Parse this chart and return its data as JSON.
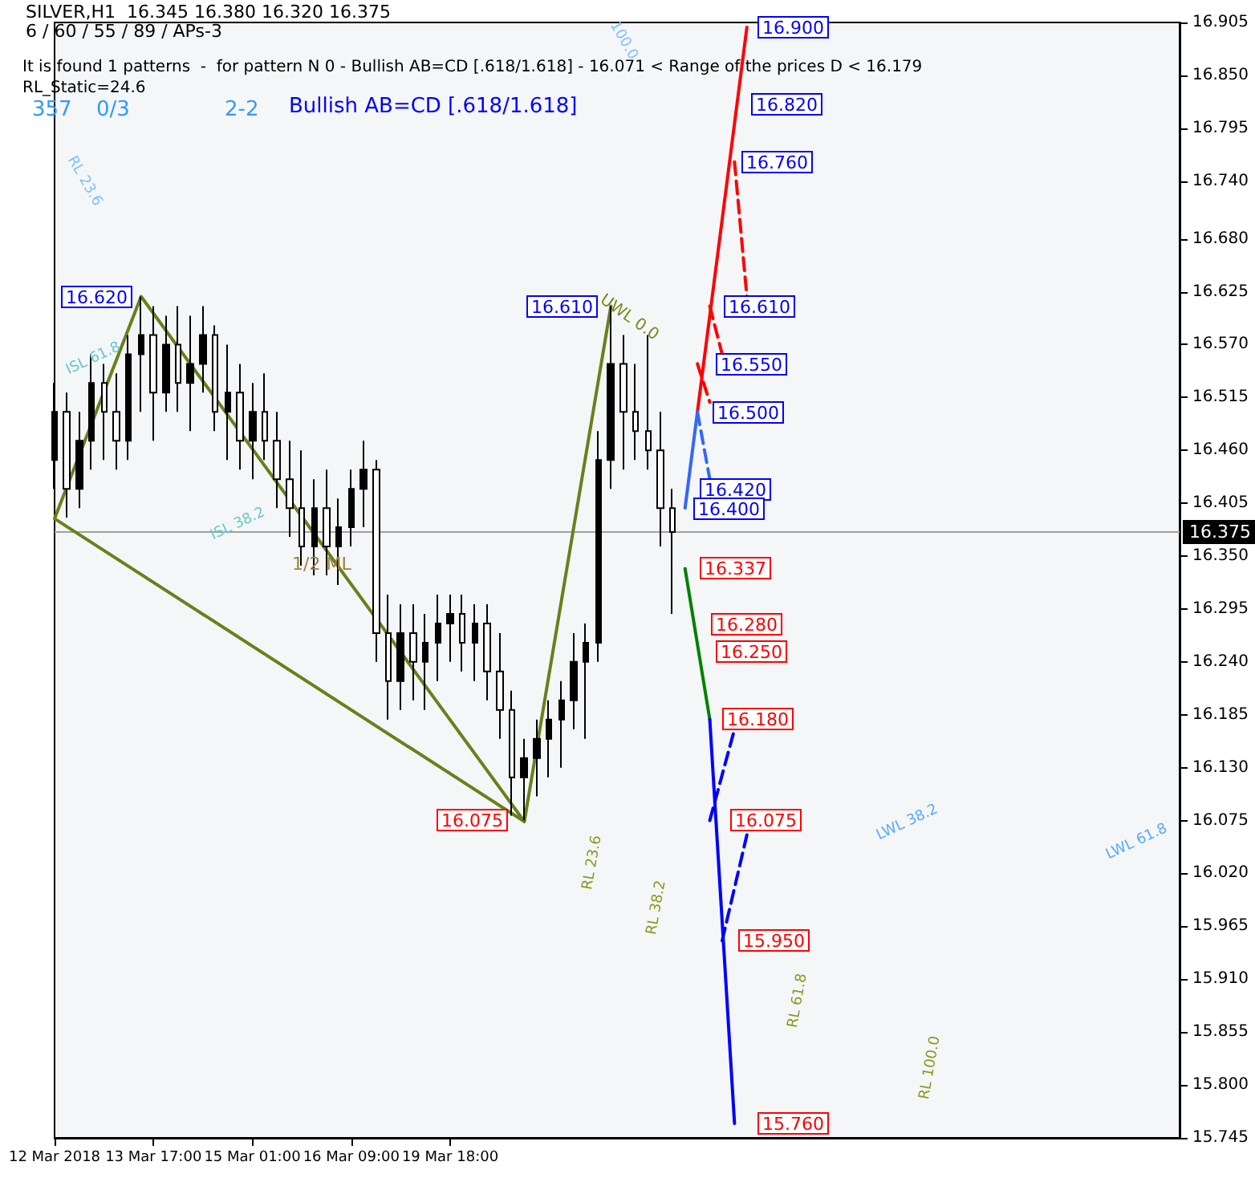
{
  "chart_data": {
    "type": "candlestick",
    "title": "SILVER,H1  16.345 16.380 16.320 16.375",
    "subtitle": "6 / 60 / 55 / 89 / APs-3",
    "annotations": [
      "It is found 1 patterns  -  for pattern N 0 - Bullish AB=CD [.618/1.618] - 16.071 < Range of the prices D < 16.179",
      "RL_Static=24.6",
      "357",
      "0/3",
      "2-2",
      "Bullish AB=CD [.618/1.618]",
      "RL 23.6",
      "100.0",
      "ISL 61.8",
      "ISL 38.2",
      "1/2 ML",
      "UWL 0.0",
      "RL 23.6",
      "RL 38.2",
      "RL 61.8",
      "RL 100.0",
      "LWL 38.2",
      "LWL 61.8",
      "16.620",
      "16.610",
      "16.075",
      "16.900",
      "16.820",
      "16.760",
      "16.610",
      "16.550",
      "16.500",
      "16.420",
      "16.400",
      "16.337",
      "16.280",
      "16.250",
      "16.180",
      "16.075",
      "15.950",
      "15.760"
    ],
    "color": "#000000",
    "categories": [
      "12 Mar 2018",
      null,
      null,
      null,
      null,
      null,
      null,
      null,
      "13 Mar 17:00",
      null,
      null,
      null,
      null,
      null,
      null,
      null,
      "15 Mar 01:00",
      null,
      null,
      null,
      null,
      null,
      null,
      null,
      "16 Mar 09:00",
      null,
      null,
      null,
      null,
      null,
      null,
      null,
      "19 Mar 18:00",
      null,
      null,
      null,
      null,
      null,
      null,
      null,
      null,
      null,
      null,
      null,
      null,
      null,
      null,
      null,
      null,
      null,
      null,
      null,
      null,
      null,
      null,
      null,
      null,
      null,
      null,
      null,
      null,
      null,
      null,
      null,
      null,
      null,
      null,
      null,
      null,
      null,
      null,
      null,
      null,
      null,
      null,
      null,
      null,
      null,
      null,
      null,
      null,
      null,
      null,
      null,
      null,
      null,
      null,
      null,
      null,
      null,
      null,
      null
    ],
    "ohlc": [
      [
        16.45,
        16.53,
        16.42,
        16.5
      ],
      [
        16.5,
        16.52,
        16.39,
        16.42
      ],
      [
        16.42,
        16.5,
        16.4,
        16.47
      ],
      [
        16.47,
        16.56,
        16.44,
        16.53
      ],
      [
        16.53,
        16.55,
        16.45,
        16.5
      ],
      [
        16.5,
        16.54,
        16.44,
        16.47
      ],
      [
        16.47,
        16.58,
        16.45,
        16.56
      ],
      [
        16.56,
        16.62,
        16.5,
        16.58
      ],
      [
        16.58,
        16.61,
        16.47,
        16.52
      ],
      [
        16.52,
        16.6,
        16.5,
        16.57
      ],
      [
        16.57,
        16.61,
        16.5,
        16.53
      ],
      [
        16.53,
        16.6,
        16.48,
        16.55
      ],
      [
        16.55,
        16.61,
        16.52,
        16.58
      ],
      [
        16.58,
        16.59,
        16.48,
        16.5
      ],
      [
        16.5,
        16.57,
        16.45,
        16.52
      ],
      [
        16.52,
        16.55,
        16.44,
        16.47
      ],
      [
        16.47,
        16.53,
        16.43,
        16.5
      ],
      [
        16.5,
        16.54,
        16.45,
        16.47
      ],
      [
        16.47,
        16.5,
        16.4,
        16.43
      ],
      [
        16.43,
        16.47,
        16.37,
        16.4
      ],
      [
        16.4,
        16.46,
        16.34,
        16.36
      ],
      [
        16.36,
        16.43,
        16.33,
        16.4
      ],
      [
        16.4,
        16.44,
        16.33,
        16.36
      ],
      [
        16.36,
        16.41,
        16.32,
        16.38
      ],
      [
        16.38,
        16.44,
        16.36,
        16.42
      ],
      [
        16.42,
        16.47,
        16.38,
        16.44
      ],
      [
        16.44,
        16.45,
        16.24,
        16.27
      ],
      [
        16.27,
        16.31,
        16.18,
        16.22
      ],
      [
        16.22,
        16.3,
        16.19,
        16.27
      ],
      [
        16.27,
        16.3,
        16.2,
        16.24
      ],
      [
        16.24,
        16.29,
        16.19,
        16.26
      ],
      [
        16.26,
        16.31,
        16.22,
        16.28
      ],
      [
        16.28,
        16.31,
        16.24,
        16.29
      ],
      [
        16.29,
        16.31,
        16.23,
        16.26
      ],
      [
        16.26,
        16.3,
        16.22,
        16.28
      ],
      [
        16.28,
        16.3,
        16.2,
        16.23
      ],
      [
        16.23,
        16.27,
        16.16,
        16.19
      ],
      [
        16.19,
        16.21,
        16.08,
        16.12
      ],
      [
        16.12,
        16.16,
        16.075,
        16.14
      ],
      [
        16.14,
        16.18,
        16.1,
        16.16
      ],
      [
        16.16,
        16.2,
        16.12,
        16.18
      ],
      [
        16.18,
        16.22,
        16.13,
        16.2
      ],
      [
        16.2,
        16.27,
        16.17,
        16.24
      ],
      [
        16.24,
        16.28,
        16.16,
        16.26
      ],
      [
        16.26,
        16.48,
        16.24,
        16.45
      ],
      [
        16.45,
        16.61,
        16.42,
        16.55
      ],
      [
        16.55,
        16.58,
        16.44,
        16.5
      ],
      [
        16.5,
        16.55,
        16.45,
        16.48
      ],
      [
        16.48,
        16.58,
        16.44,
        16.46
      ],
      [
        16.46,
        16.5,
        16.36,
        16.4
      ],
      [
        16.4,
        16.42,
        16.29,
        16.375
      ],
      null,
      null,
      null,
      null,
      null,
      null,
      null,
      null,
      null,
      null,
      null,
      null,
      null,
      null,
      null,
      null,
      null,
      null,
      null,
      null,
      null,
      null,
      null,
      null,
      null,
      null,
      null,
      null,
      null,
      null,
      null,
      null,
      null,
      null,
      null,
      null,
      null,
      null,
      null,
      null,
      null
    ],
    "series": [
      {
        "type": "line",
        "color": "#6b7f1a",
        "values": [
          16.389,
          null,
          null,
          null,
          null,
          null,
          null,
          16.62,
          null,
          null,
          null,
          null,
          null,
          null,
          null,
          null,
          null,
          null,
          null,
          null,
          null,
          null,
          null,
          null,
          null,
          null,
          null,
          null,
          null,
          null,
          null,
          null,
          null,
          null,
          null,
          null,
          null,
          null,
          16.074,
          null,
          null,
          null,
          null,
          null,
          null,
          16.61,
          null,
          null,
          null,
          null,
          null,
          null,
          null,
          null,
          null,
          null,
          null,
          null,
          null,
          null,
          null,
          null,
          null,
          null,
          null,
          null,
          null,
          null,
          null,
          null,
          null,
          null,
          null,
          null,
          null,
          null,
          null,
          null,
          null,
          null,
          null,
          null,
          null,
          null,
          null,
          null,
          null,
          null,
          null,
          null,
          null,
          null
        ]
      },
      {
        "type": "line",
        "color": "#6b7f1a",
        "values": [
          16.389,
          null,
          null,
          null,
          null,
          null,
          null,
          null,
          null,
          null,
          null,
          null,
          null,
          null,
          null,
          null,
          null,
          null,
          null,
          null,
          null,
          null,
          null,
          null,
          null,
          null,
          null,
          null,
          null,
          null,
          null,
          null,
          null,
          null,
          null,
          null,
          null,
          null,
          16.074,
          null,
          null,
          null,
          null,
          null,
          null,
          null,
          null,
          null,
          null,
          null,
          null,
          null,
          null,
          null,
          null,
          null,
          null,
          null,
          null,
          null,
          null,
          null,
          null,
          null,
          null,
          null,
          null,
          null,
          null,
          null,
          null,
          null,
          null,
          null,
          null,
          null,
          null,
          null,
          null,
          null,
          null,
          null,
          null,
          null,
          null,
          null,
          null,
          null,
          null,
          null,
          null,
          null
        ]
      },
      {
        "type": "line",
        "color": "#3366ff",
        "values": [
          null,
          null,
          null,
          null,
          null,
          null,
          null,
          null,
          null,
          null,
          null,
          null,
          null,
          null,
          null,
          null,
          null,
          null,
          null,
          null,
          null,
          null,
          null,
          null,
          null,
          null,
          null,
          null,
          null,
          null,
          null,
          null,
          null,
          null,
          null,
          null,
          null,
          null,
          null,
          null,
          null,
          null,
          null,
          null,
          null,
          null,
          null,
          null,
          null,
          null,
          null,
          16.4,
          16.5,
          null,
          null,
          null,
          null,
          null,
          null,
          null,
          null,
          null,
          null,
          null,
          null,
          null,
          null,
          null,
          null,
          null,
          null,
          null,
          null,
          null,
          null,
          null,
          null,
          null,
          null,
          null,
          null,
          null,
          null,
          null,
          null,
          null,
          null,
          null,
          null,
          null,
          null,
          null
        ]
      },
      {
        "type": "line",
        "color": "#ff0000",
        "values": [
          null,
          null,
          null,
          null,
          null,
          null,
          null,
          null,
          null,
          null,
          null,
          null,
          null,
          null,
          null,
          null,
          null,
          null,
          null,
          null,
          null,
          null,
          null,
          null,
          null,
          null,
          null,
          null,
          null,
          null,
          null,
          null,
          null,
          null,
          null,
          null,
          null,
          null,
          null,
          null,
          null,
          null,
          null,
          null,
          null,
          null,
          null,
          null,
          null,
          null,
          null,
          null,
          16.5,
          null,
          null,
          null,
          16.9,
          null,
          null,
          null,
          null,
          null,
          null,
          null,
          null,
          null,
          null,
          null,
          null,
          null,
          null,
          null,
          null,
          null,
          null,
          null,
          null,
          null,
          null,
          null,
          null,
          null,
          null,
          null,
          null,
          null,
          null,
          null,
          null,
          null,
          null,
          null
        ]
      },
      {
        "type": "line",
        "color": "#008000",
        "values": [
          null,
          null,
          null,
          null,
          null,
          null,
          null,
          null,
          null,
          null,
          null,
          null,
          null,
          null,
          null,
          null,
          null,
          null,
          null,
          null,
          null,
          null,
          null,
          null,
          null,
          null,
          null,
          null,
          null,
          null,
          null,
          null,
          null,
          null,
          null,
          null,
          null,
          null,
          null,
          null,
          null,
          null,
          null,
          null,
          null,
          null,
          null,
          null,
          null,
          null,
          null,
          16.337,
          null,
          16.18,
          null,
          null,
          null,
          null,
          null,
          null,
          null,
          null,
          null,
          null,
          null,
          null,
          null,
          null,
          null,
          null,
          null,
          null,
          null,
          null,
          null,
          null,
          null,
          null,
          null,
          null,
          null,
          null,
          null,
          null,
          null,
          null,
          null,
          null,
          null,
          null,
          null,
          null
        ]
      },
      {
        "type": "line",
        "color": "#0000ff",
        "values": [
          null,
          null,
          null,
          null,
          null,
          null,
          null,
          null,
          null,
          null,
          null,
          null,
          null,
          null,
          null,
          null,
          null,
          null,
          null,
          null,
          null,
          null,
          null,
          null,
          null,
          null,
          null,
          null,
          null,
          null,
          null,
          null,
          null,
          null,
          null,
          null,
          null,
          null,
          null,
          null,
          null,
          null,
          null,
          null,
          null,
          null,
          null,
          null,
          null,
          null,
          null,
          null,
          null,
          16.18,
          null,
          15.76,
          null,
          null,
          null,
          null,
          null,
          null,
          null,
          null,
          null,
          null,
          null,
          null,
          null,
          null,
          null,
          null,
          null,
          null,
          null,
          null,
          null,
          null,
          null,
          null,
          null,
          null,
          null,
          null,
          null,
          null,
          null,
          null,
          null,
          null,
          null,
          null
        ]
      },
      {
        "type": "line",
        "color": "#ff0000",
        "line_style": "dashed",
        "values": [
          null,
          null,
          null,
          null,
          null,
          null,
          null,
          null,
          null,
          null,
          null,
          null,
          null,
          null,
          null,
          null,
          null,
          null,
          null,
          null,
          null,
          null,
          null,
          null,
          null,
          null,
          null,
          null,
          null,
          null,
          null,
          null,
          null,
          null,
          null,
          null,
          null,
          null,
          null,
          null,
          null,
          null,
          null,
          null,
          null,
          null,
          null,
          null,
          null,
          null,
          null,
          null,
          null,
          null,
          null,
          16.76,
          16.62,
          null,
          null,
          null,
          null,
          null,
          null,
          null,
          null,
          null,
          null,
          null,
          null,
          null,
          null,
          null,
          null,
          null,
          null,
          null,
          null,
          null,
          null,
          null,
          null,
          null,
          null,
          null,
          null,
          null,
          null,
          null,
          null,
          null,
          null,
          null
        ]
      },
      {
        "type": "line",
        "color": "#ff0000",
        "line_style": "dashed",
        "values": [
          null,
          null,
          null,
          null,
          null,
          null,
          null,
          null,
          null,
          null,
          null,
          null,
          null,
          null,
          null,
          null,
          null,
          null,
          null,
          null,
          null,
          null,
          null,
          null,
          null,
          null,
          null,
          null,
          null,
          null,
          null,
          null,
          null,
          null,
          null,
          null,
          null,
          null,
          null,
          null,
          null,
          null,
          null,
          null,
          null,
          null,
          null,
          null,
          null,
          null,
          null,
          null,
          null,
          16.61,
          16.56,
          null,
          null,
          null,
          null,
          null,
          null,
          null,
          null,
          null,
          null,
          null,
          null,
          null,
          null,
          null,
          null,
          null,
          null,
          null,
          null,
          null,
          null,
          null,
          null,
          null,
          null,
          null,
          null,
          null,
          null,
          null,
          null,
          null,
          null,
          null,
          null,
          null
        ]
      },
      {
        "type": "line",
        "color": "#ff0000",
        "line_style": "dashed",
        "values": [
          null,
          null,
          null,
          null,
          null,
          null,
          null,
          null,
          null,
          null,
          null,
          null,
          null,
          null,
          null,
          null,
          null,
          null,
          null,
          null,
          null,
          null,
          null,
          null,
          null,
          null,
          null,
          null,
          null,
          null,
          null,
          null,
          null,
          null,
          null,
          null,
          null,
          null,
          null,
          null,
          null,
          null,
          null,
          null,
          null,
          null,
          null,
          null,
          null,
          null,
          null,
          null,
          16.55,
          16.51,
          null,
          null,
          null,
          null,
          null,
          null,
          null,
          null,
          null,
          null,
          null,
          null,
          null,
          null,
          null,
          null,
          null,
          null,
          null,
          null,
          null,
          null,
          null,
          null,
          null,
          null,
          null,
          null,
          null,
          null,
          null,
          null,
          null,
          null,
          null,
          null,
          null,
          null
        ]
      },
      {
        "type": "line",
        "color": "#3366ff",
        "line_style": "dashed",
        "values": [
          null,
          null,
          null,
          null,
          null,
          null,
          null,
          null,
          null,
          null,
          null,
          null,
          null,
          null,
          null,
          null,
          null,
          null,
          null,
          null,
          null,
          null,
          null,
          null,
          null,
          null,
          null,
          null,
          null,
          null,
          null,
          null,
          null,
          null,
          null,
          null,
          null,
          null,
          null,
          null,
          null,
          null,
          null,
          null,
          null,
          null,
          null,
          null,
          null,
          null,
          null,
          null,
          16.5,
          16.43,
          null,
          null,
          null,
          null,
          null,
          null,
          null,
          null,
          null,
          null,
          null,
          null,
          null,
          null,
          null,
          null,
          null,
          null,
          null,
          null,
          null,
          null,
          null,
          null,
          null,
          null,
          null,
          null,
          null,
          null,
          null,
          null,
          null,
          null,
          null,
          null,
          null,
          null
        ]
      },
      {
        "type": "line",
        "color": "#0000ff",
        "line_style": "dashed",
        "values": [
          null,
          null,
          null,
          null,
          null,
          null,
          null,
          null,
          null,
          null,
          null,
          null,
          null,
          null,
          null,
          null,
          null,
          null,
          null,
          null,
          null,
          null,
          null,
          null,
          null,
          null,
          null,
          null,
          null,
          null,
          null,
          null,
          null,
          null,
          null,
          null,
          null,
          null,
          null,
          null,
          null,
          null,
          null,
          null,
          null,
          null,
          null,
          null,
          null,
          null,
          null,
          null,
          null,
          16.075,
          null,
          16.17,
          null,
          null,
          null,
          null,
          null,
          null,
          null,
          null,
          null,
          null,
          null,
          null,
          null,
          null,
          null,
          null,
          null,
          null,
          null,
          null,
          null,
          null,
          null,
          null,
          null,
          null,
          null,
          null,
          null,
          null,
          null,
          null,
          null,
          null,
          null,
          null
        ]
      },
      {
        "type": "line",
        "color": "#0000ff",
        "line_style": "dashed",
        "values": [
          null,
          null,
          null,
          null,
          null,
          null,
          null,
          null,
          null,
          null,
          null,
          null,
          null,
          null,
          null,
          null,
          null,
          null,
          null,
          null,
          null,
          null,
          null,
          null,
          null,
          null,
          null,
          null,
          null,
          null,
          null,
          null,
          null,
          null,
          null,
          null,
          null,
          null,
          null,
          null,
          null,
          null,
          null,
          null,
          null,
          null,
          null,
          null,
          null,
          null,
          null,
          null,
          null,
          null,
          15.95,
          null,
          16.06,
          null,
          null,
          null,
          null,
          null,
          null,
          null,
          null,
          null,
          null,
          null,
          null,
          null,
          null,
          null,
          null,
          null,
          null,
          null,
          null,
          null,
          null,
          null,
          null,
          null,
          null,
          null,
          null,
          null,
          null,
          null,
          null,
          null,
          null,
          null
        ]
      }
    ],
    "ref_lines": [
      {
        "axis": "y",
        "value": 16.375,
        "label": "16.375",
        "color": "#a0a0a0"
      }
    ],
    "ylim": [
      15.745,
      16.905
    ],
    "yticks": [
      {
        "value": 15.745,
        "label": "15.745"
      },
      {
        "value": 15.8,
        "label": "15.800"
      },
      {
        "value": 15.855,
        "label": "15.855"
      },
      {
        "value": 15.91,
        "label": "15.910"
      },
      {
        "value": 15.965,
        "label": "15.965"
      },
      {
        "value": 16.02,
        "label": "16.020"
      },
      {
        "value": 16.075,
        "label": "16.075"
      },
      {
        "value": 16.13,
        "label": "16.130"
      },
      {
        "value": 16.185,
        "label": "16.185"
      },
      {
        "value": 16.24,
        "label": "16.240"
      },
      {
        "value": 16.295,
        "label": "16.295"
      },
      {
        "value": 16.35,
        "label": "16.350"
      },
      {
        "value": 16.405,
        "label": "16.405"
      },
      {
        "value": 16.46,
        "label": "16.460"
      },
      {
        "value": 16.515,
        "label": "16.515"
      },
      {
        "value": 16.57,
        "label": "16.570"
      },
      {
        "value": 16.625,
        "label": "16.625"
      },
      {
        "value": 16.68,
        "label": "16.680"
      },
      {
        "value": 16.74,
        "label": "16.740"
      },
      {
        "value": 16.795,
        "label": "16.795"
      },
      {
        "value": 16.85,
        "label": "16.850"
      },
      {
        "value": 16.905,
        "label": "16.905"
      }
    ],
    "marker": "none",
    "line_style": "solid",
    "grid": false
  }
}
